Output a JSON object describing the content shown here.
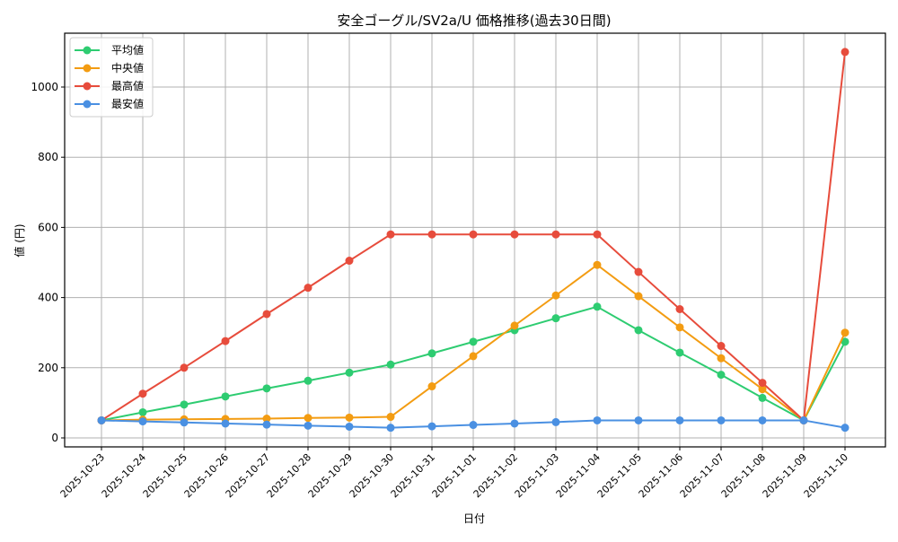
{
  "chart_data": {
    "type": "line",
    "title": "安全ゴーグル/SV2a/U 価格推移(過去30日間)",
    "xlabel": "日付",
    "ylabel": "値 (円)",
    "ylim": [
      -25,
      1150
    ],
    "yticks": [
      0,
      200,
      400,
      600,
      800,
      1000
    ],
    "grid": true,
    "legend_position": "upper left",
    "categories": [
      "2025-10-23",
      "2025-10-24",
      "2025-10-25",
      "2025-10-26",
      "2025-10-27",
      "2025-10-28",
      "2025-10-29",
      "2025-10-30",
      "2025-10-31",
      "2025-11-01",
      "2025-11-02",
      "2025-11-03",
      "2025-11-04",
      "2025-11-05",
      "2025-11-06",
      "2025-11-07",
      "2025-11-08",
      "2025-11-09",
      "2025-11-10"
    ],
    "series": [
      {
        "name": "平均値",
        "color": "#2ecc71",
        "values": [
          50,
          73,
          95,
          118,
          141,
          163,
          186,
          209,
          241,
          274,
          307,
          341,
          374,
          307,
          243,
          180,
          114,
          50,
          274
        ]
      },
      {
        "name": "中央値",
        "color": "#f39c12",
        "values": [
          50,
          52,
          53,
          54,
          55,
          57,
          58,
          60,
          147,
          233,
          320,
          406,
          493,
          404,
          315,
          227,
          139,
          50,
          300
        ]
      },
      {
        "name": "最高値",
        "color": "#e74c3c",
        "values": [
          50,
          126,
          200,
          276,
          353,
          428,
          505,
          580,
          580,
          580,
          580,
          580,
          580,
          473,
          367,
          262,
          157,
          50,
          1100
        ]
      },
      {
        "name": "最安値",
        "color": "#4a90e2",
        "values": [
          50,
          47,
          44,
          41,
          38,
          35,
          32,
          29,
          33,
          37,
          41,
          45,
          50,
          50,
          50,
          50,
          50,
          50,
          29
        ]
      }
    ]
  }
}
